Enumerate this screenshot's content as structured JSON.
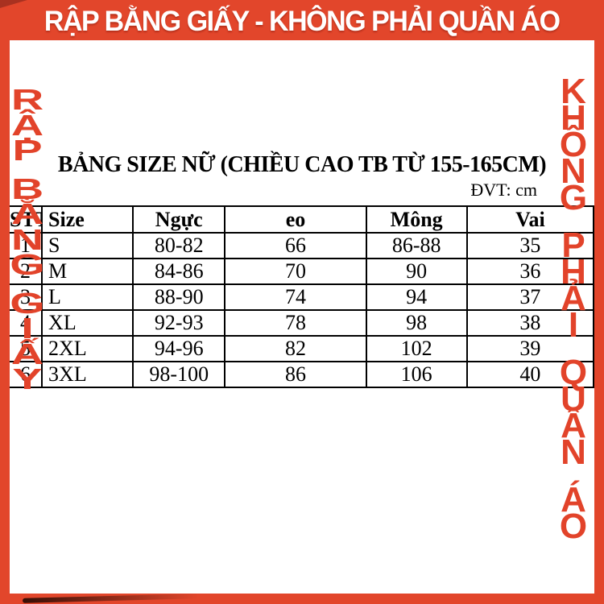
{
  "colors": {
    "accent_red": "#E2462B",
    "corner_fold_red": "#A83120",
    "text_black": "#000000",
    "banner_text_white": "#FFFFFF"
  },
  "banner": {
    "title": "RẬP BẰNG GIẤY - KHÔNG PHẢI QUẦN ÁO"
  },
  "side_left": {
    "text": "RẬP BẰNG GIẤY"
  },
  "side_right": {
    "text": "KHÔNG PHẢI QUẦN ÁO"
  },
  "size_chart": {
    "title": "BẢNG SIZE NỮ (CHIỀU CAO TB TỪ 155-165CM)",
    "unit_note": "ĐVT: cm",
    "columns": [
      "STT",
      "Size",
      "Ngực",
      "eo",
      "Mông",
      "Vai"
    ],
    "rows": [
      [
        "1",
        "S",
        "80-82",
        "66",
        "86-88",
        "35"
      ],
      [
        "2",
        "M",
        "84-86",
        "70",
        "90",
        "36"
      ],
      [
        "3",
        "L",
        "88-90",
        "74",
        "94",
        "37"
      ],
      [
        "4",
        "XL",
        "92-93",
        "78",
        "98",
        "38"
      ],
      [
        "5",
        "2XL",
        "94-96",
        "82",
        "102",
        "39"
      ],
      [
        "6",
        "3XL",
        "98-100",
        "86",
        "106",
        "40"
      ]
    ]
  }
}
